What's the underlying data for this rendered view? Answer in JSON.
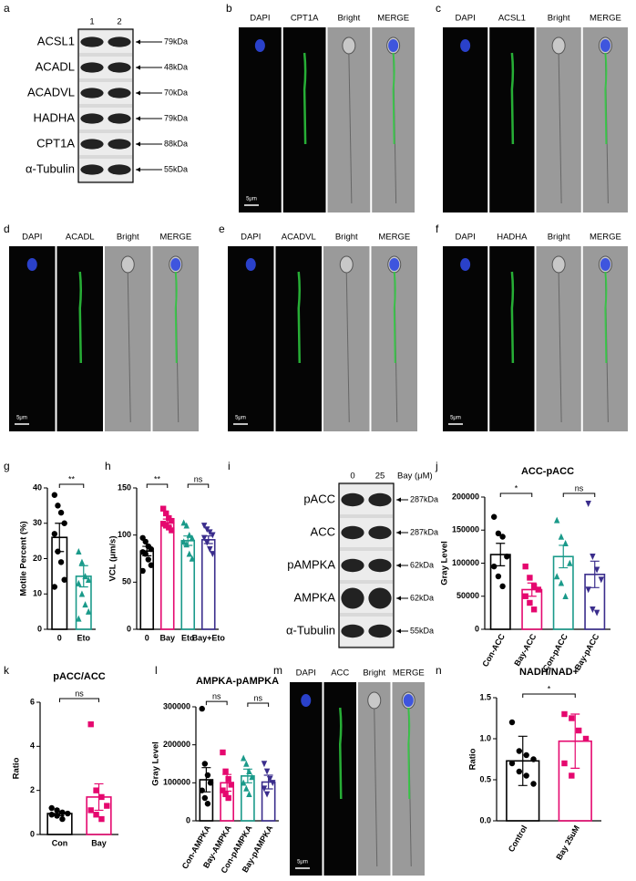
{
  "panel_labels": [
    "a",
    "b",
    "c",
    "d",
    "e",
    "f",
    "g",
    "h",
    "i",
    "j",
    "k",
    "l",
    "m",
    "n"
  ],
  "western_a": {
    "lanes": [
      "1",
      "2"
    ],
    "rows": [
      {
        "protein": "ACSL1",
        "size": "79kDa"
      },
      {
        "protein": "ACADL",
        "size": "48kDa"
      },
      {
        "protein": "ACADVL",
        "size": "70kDa"
      },
      {
        "protein": "HADHA",
        "size": "79kDa"
      },
      {
        "protein": "CPT1A",
        "size": "88kDa"
      },
      {
        "protein": "α-Tubulin",
        "size": "55kDa"
      }
    ]
  },
  "western_i": {
    "lanes": [
      "0",
      "25"
    ],
    "lane_label": "Bay (μM)",
    "rows": [
      {
        "protein": "pACC",
        "size": "287kDa"
      },
      {
        "protein": "ACC",
        "size": "287kDa"
      },
      {
        "protein": "pAMPKA",
        "size": "62kDa"
      },
      {
        "protein": "AMPKA",
        "size": "62kDa"
      },
      {
        "protein": "α-Tubulin",
        "size": "55kDa"
      }
    ]
  },
  "microscopy": [
    {
      "channels": [
        "DAPI",
        "CPT1A",
        "Bright",
        "MERGE"
      ],
      "scale_bar": "5μm"
    },
    {
      "channels": [
        "DAPI",
        "ACSL1",
        "Bright",
        "MERGE"
      ]
    },
    {
      "channels": [
        "DAPI",
        "ACADL",
        "Bright",
        "MERGE"
      ],
      "scale_bar": "5μm"
    },
    {
      "channels": [
        "DAPI",
        "ACADVL",
        "Bright",
        "MERGE"
      ],
      "scale_bar": "5μm"
    },
    {
      "channels": [
        "DAPI",
        "HADHA",
        "Bright",
        "MERGE"
      ],
      "scale_bar": "5μm"
    },
    {
      "channels": [
        "DAPI",
        "ACC",
        "Bright",
        "MERGE"
      ],
      "scale_bar": "5μm"
    }
  ],
  "chart_data": [
    {
      "type": "bar",
      "y_label": "Motile Percent (%)",
      "categories": [
        "0",
        "Eto"
      ],
      "values": [
        26,
        15
      ],
      "errors": [
        4,
        3
      ],
      "points": [
        [
          38,
          35,
          33,
          30,
          27,
          22,
          19,
          14,
          12
        ],
        [
          22,
          19,
          15,
          14,
          13,
          10,
          7,
          5,
          3
        ]
      ],
      "colors": [
        "#000000",
        "#1a9a8a"
      ],
      "markers": [
        "circle",
        "triangle"
      ],
      "ylim": [
        0,
        40
      ],
      "yticks": [
        0,
        10,
        20,
        30,
        40
      ],
      "significance": [
        "**"
      ]
    },
    {
      "type": "bar",
      "y_label": "VCL (μm/s)",
      "categories": [
        "0",
        "Bay",
        "Eto",
        "Bay+Eto"
      ],
      "values": [
        83,
        113,
        94,
        95
      ],
      "errors": [
        5,
        4,
        5,
        4
      ],
      "points": [
        [
          97,
          93,
          88,
          85,
          82,
          80,
          74,
          68,
          62
        ],
        [
          128,
          123,
          118,
          115,
          112,
          110,
          108,
          105
        ],
        [
          113,
          110,
          100,
          97,
          93,
          90,
          80,
          75
        ],
        [
          110,
          106,
          103,
          100,
          97,
          92,
          85,
          80
        ]
      ],
      "colors": [
        "#000000",
        "#e5086f",
        "#1a9a8a",
        "#3a2d8c"
      ],
      "markers": [
        "circle",
        "square",
        "triangle",
        "triangle-down"
      ],
      "ylim": [
        0,
        150
      ],
      "yticks": [
        0,
        50,
        100,
        150
      ],
      "significance": [
        "**",
        "ns"
      ]
    },
    {
      "type": "bar",
      "title": "ACC-pACC",
      "y_label": "Gray Level",
      "categories": [
        "Con-ACC",
        "Bay-ACC",
        "Con-pACC",
        "Bay-pACC"
      ],
      "values": [
        113000,
        60000,
        110000,
        83000
      ],
      "errors": [
        17000,
        10000,
        17000,
        20000
      ],
      "points": [
        [
          170000,
          145000,
          140000,
          110000,
          95000,
          80000,
          65000
        ],
        [
          95000,
          78000,
          65000,
          60000,
          50000,
          40000,
          30000
        ],
        [
          165000,
          140000,
          130000,
          100000,
          80000,
          70000,
          50000
        ],
        [
          190000,
          110000,
          90000,
          75000,
          60000,
          30000,
          25000
        ]
      ],
      "colors": [
        "#000000",
        "#e5086f",
        "#1a9a8a",
        "#3a2d8c"
      ],
      "markers": [
        "circle",
        "square",
        "triangle",
        "triangle-down"
      ],
      "ylim": [
        0,
        200000
      ],
      "yticks": [
        0,
        50000,
        100000,
        150000,
        200000
      ],
      "significance": [
        "*",
        "ns"
      ]
    },
    {
      "type": "bar",
      "title": "pACC/ACC",
      "y_label": "Ratio",
      "categories": [
        "Con",
        "Bay"
      ],
      "values": [
        0.95,
        1.7
      ],
      "errors": [
        0.1,
        0.6
      ],
      "points": [
        [
          1.2,
          1.1,
          1.0,
          0.95,
          0.9,
          0.85,
          0.7
        ],
        [
          5.0,
          2.0,
          1.7,
          1.3,
          1.1,
          0.9,
          0.7
        ]
      ],
      "colors": [
        "#000000",
        "#e5086f"
      ],
      "markers": [
        "circle",
        "square"
      ],
      "ylim": [
        0,
        6
      ],
      "yticks": [
        0,
        2,
        4,
        6
      ],
      "significance": [
        "ns"
      ]
    },
    {
      "type": "bar",
      "title": "AMPKA-pAMPKA",
      "y_label": "Gray Level",
      "categories": [
        "Con-AMPKA",
        "Bay-AMPKA",
        "Con-pAMPKA",
        "Bay-pAMPKA"
      ],
      "values": [
        108000,
        100000,
        118000,
        102000
      ],
      "errors": [
        32000,
        22000,
        18000,
        18000
      ],
      "points": [
        [
          295000,
          150000,
          120000,
          100000,
          80000,
          60000,
          45000
        ],
        [
          180000,
          130000,
          110000,
          95000,
          80000,
          70000,
          60000
        ],
        [
          165000,
          150000,
          130000,
          115000,
          100000,
          85000,
          70000
        ],
        [
          150000,
          130000,
          110000,
          100000,
          85000,
          70000
        ]
      ],
      "colors": [
        "#000000",
        "#e5086f",
        "#1a9a8a",
        "#3a2d8c"
      ],
      "markers": [
        "circle",
        "square",
        "triangle",
        "triangle-down"
      ],
      "ylim": [
        0,
        300000
      ],
      "yticks": [
        0,
        100000,
        200000,
        300000
      ],
      "significance": [
        "ns",
        "ns"
      ]
    },
    {
      "type": "bar",
      "title": "NADH/NAD+",
      "y_label": "Ratio",
      "categories": [
        "Control",
        "Bay 25uM"
      ],
      "values": [
        0.73,
        0.97
      ],
      "errors": [
        0.3,
        0.33
      ],
      "points": [
        [
          1.2,
          0.85,
          0.8,
          0.75,
          0.7,
          0.6,
          0.55,
          0.45
        ],
        [
          1.3,
          1.25,
          1.1,
          1.0,
          0.7,
          0.55
        ]
      ],
      "colors": [
        "#000000",
        "#e5086f"
      ],
      "markers": [
        "circle",
        "square"
      ],
      "ylim": [
        0,
        1.5
      ],
      "yticks": [
        {
          "value": 0,
          "label": "0.0"
        },
        0.5,
        {
          "value": 1,
          "label": "1.0"
        },
        1.5
      ],
      "significance": [
        "*"
      ]
    }
  ]
}
